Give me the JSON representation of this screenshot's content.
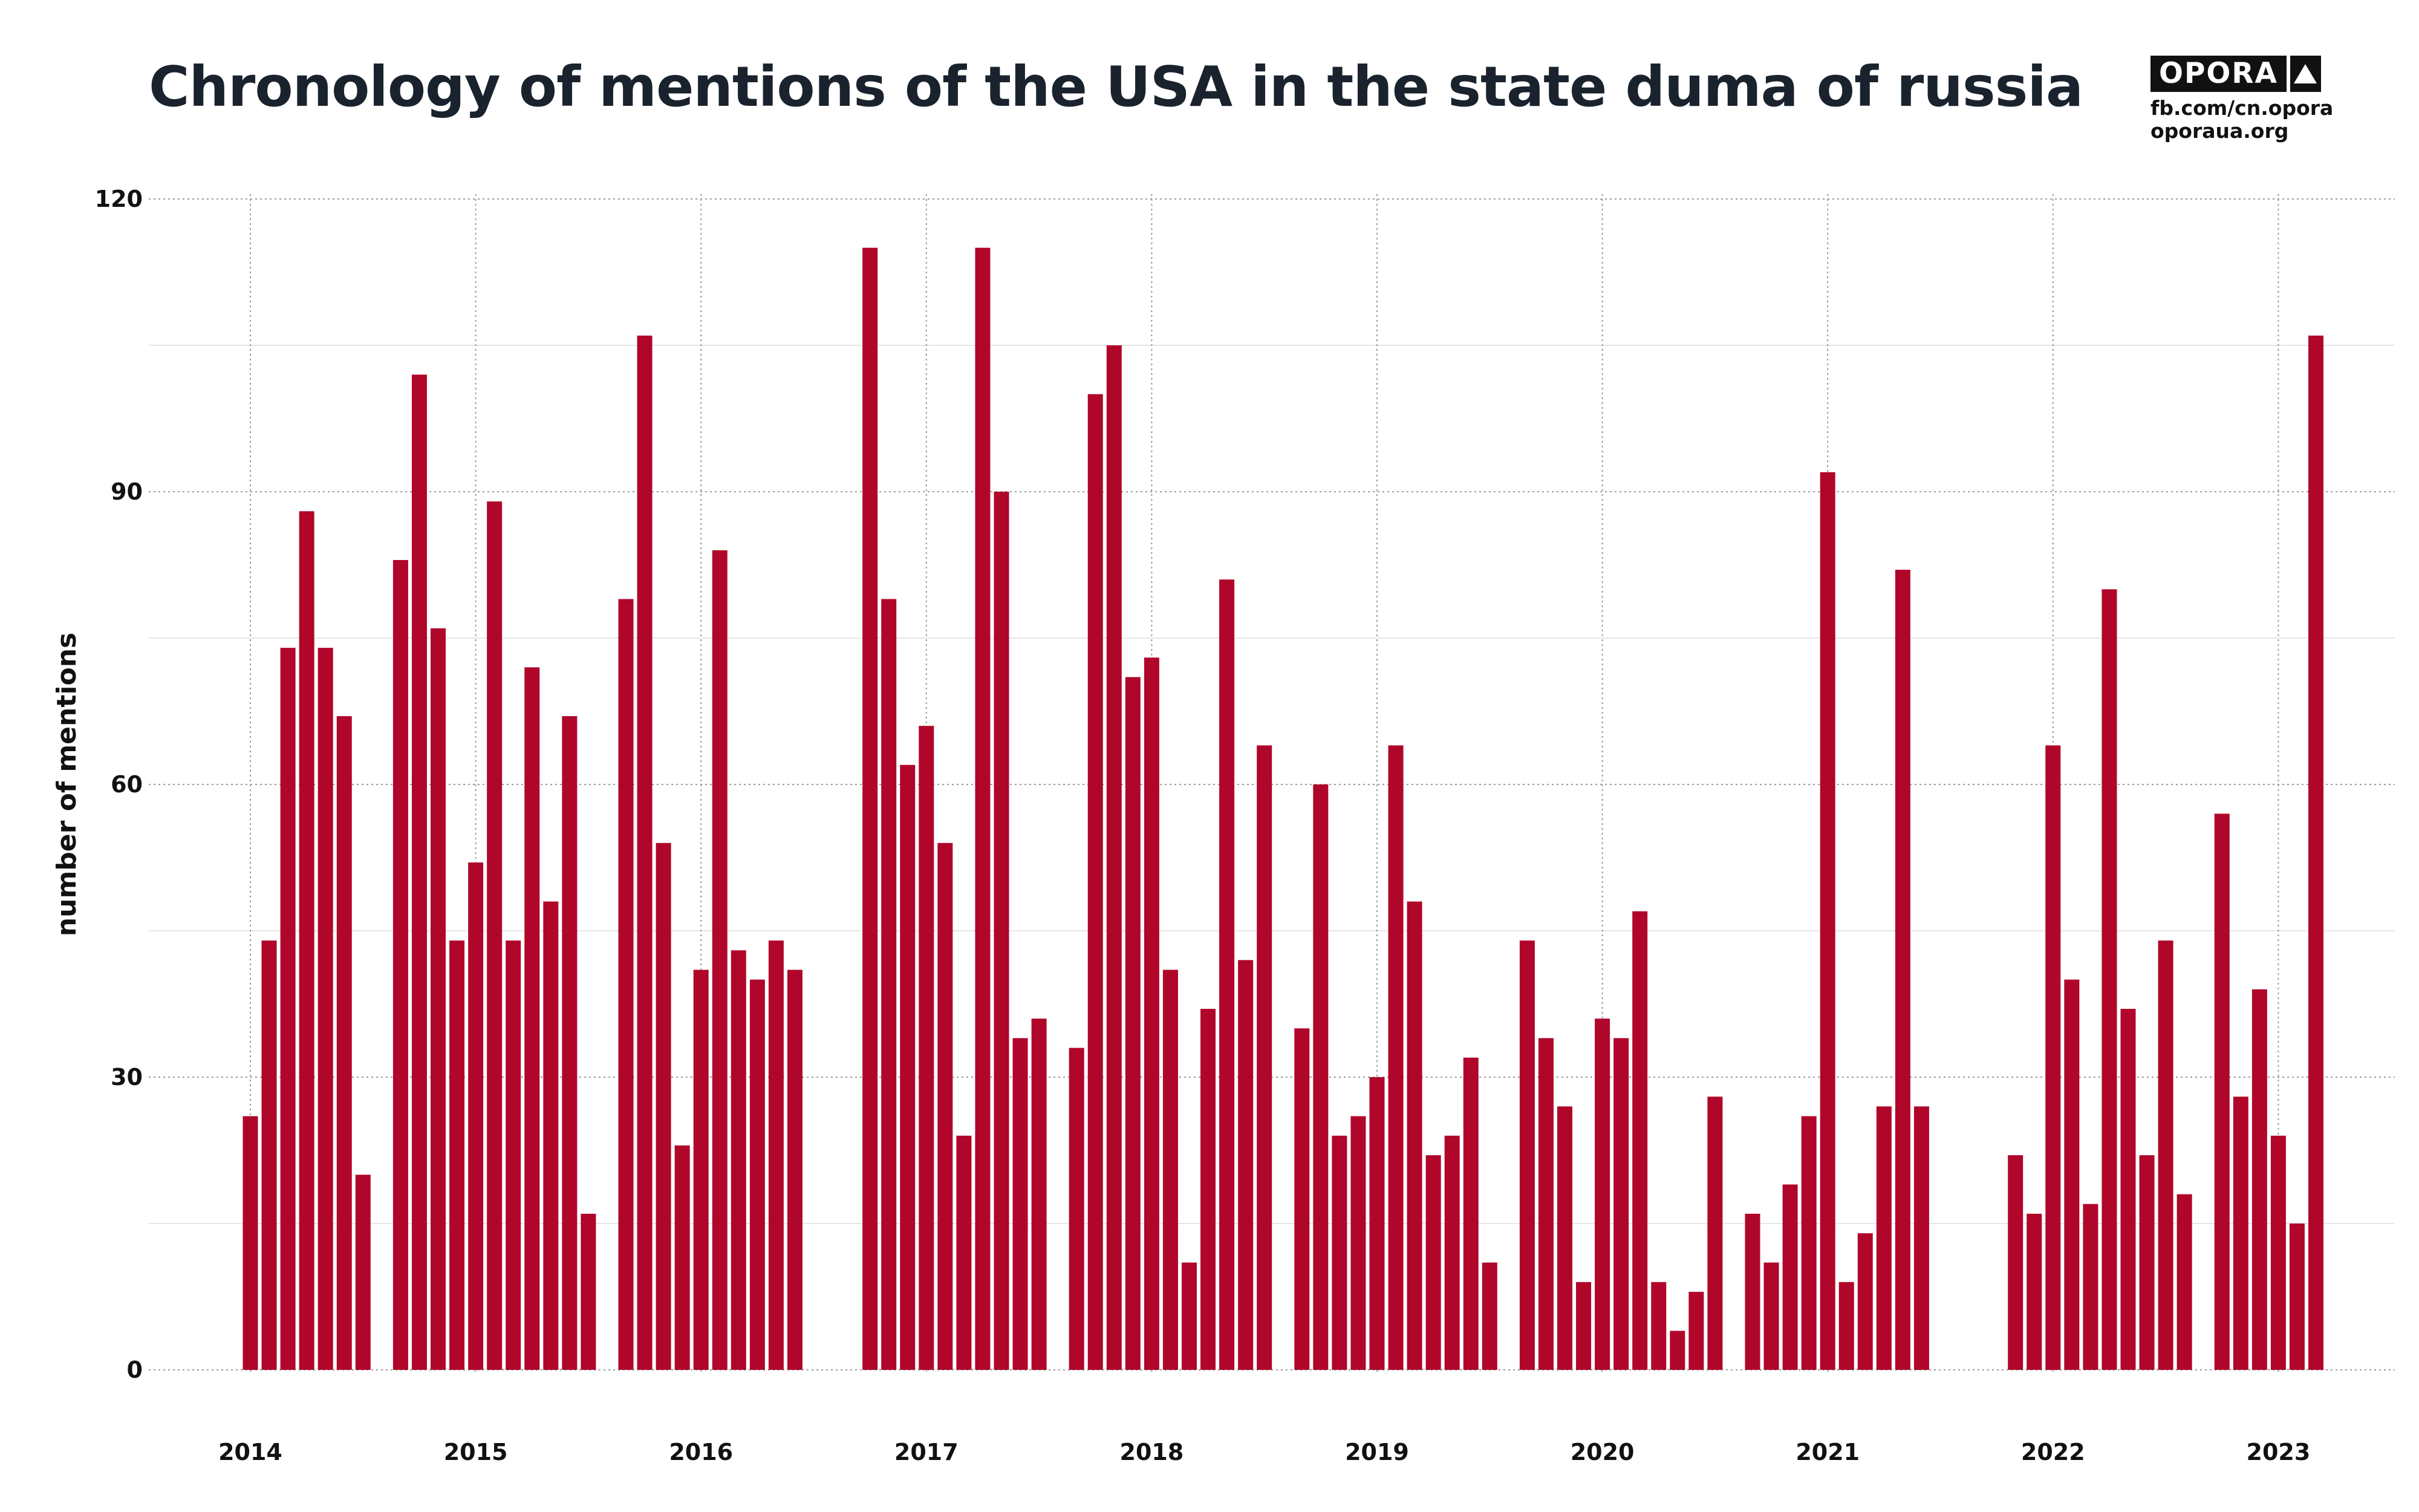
{
  "header": {
    "title": "Chronology of mentions of the USA in the state duma of russia"
  },
  "logo": {
    "name": "OPORA",
    "line1": "fb.com/cn.opora",
    "line2": "oporaua.org"
  },
  "colors": {
    "bar": "#b0062a",
    "text": "#111111",
    "title": "#1a232d",
    "grid_major": "#9a9a9a",
    "grid_minor": "#e6e6e6"
  },
  "chart_data": {
    "type": "bar",
    "title": "Chronology of mentions of the USA in the state duma of russia",
    "xlabel": "",
    "ylabel": "number of mentions",
    "ylim": [
      0,
      120
    ],
    "yticks": [
      0,
      30,
      60,
      90,
      120
    ],
    "x_axis": "date",
    "xticks": [
      "2014",
      "2015",
      "2016",
      "2017",
      "2018",
      "2019",
      "2020",
      "2021",
      "2022",
      "2023"
    ],
    "xlim": [
      "2013-07",
      "2023-06"
    ],
    "grid": true,
    "points": [
      {
        "date": "2014-01",
        "value": 26
      },
      {
        "date": "2014-02",
        "value": 44
      },
      {
        "date": "2014-03",
        "value": 74
      },
      {
        "date": "2014-04",
        "value": 88
      },
      {
        "date": "2014-05",
        "value": 74
      },
      {
        "date": "2014-06",
        "value": 67
      },
      {
        "date": "2014-07",
        "value": 20
      },
      {
        "date": "2014-09",
        "value": 83
      },
      {
        "date": "2014-10",
        "value": 102
      },
      {
        "date": "2014-11",
        "value": 76
      },
      {
        "date": "2014-12",
        "value": 44
      },
      {
        "date": "2015-01",
        "value": 52
      },
      {
        "date": "2015-02",
        "value": 89
      },
      {
        "date": "2015-03",
        "value": 44
      },
      {
        "date": "2015-04",
        "value": 72
      },
      {
        "date": "2015-05",
        "value": 48
      },
      {
        "date": "2015-06",
        "value": 67
      },
      {
        "date": "2015-07",
        "value": 16
      },
      {
        "date": "2015-09",
        "value": 79
      },
      {
        "date": "2015-10",
        "value": 106
      },
      {
        "date": "2015-11",
        "value": 54
      },
      {
        "date": "2015-12",
        "value": 23
      },
      {
        "date": "2016-01",
        "value": 41
      },
      {
        "date": "2016-02",
        "value": 84
      },
      {
        "date": "2016-03",
        "value": 43
      },
      {
        "date": "2016-04",
        "value": 40
      },
      {
        "date": "2016-05",
        "value": 44
      },
      {
        "date": "2016-06",
        "value": 41
      },
      {
        "date": "2016-10",
        "value": 115
      },
      {
        "date": "2016-11",
        "value": 79
      },
      {
        "date": "2016-12",
        "value": 62
      },
      {
        "date": "2017-01",
        "value": 66
      },
      {
        "date": "2017-02",
        "value": 54
      },
      {
        "date": "2017-03",
        "value": 24
      },
      {
        "date": "2017-04",
        "value": 115
      },
      {
        "date": "2017-05",
        "value": 90
      },
      {
        "date": "2017-06",
        "value": 34
      },
      {
        "date": "2017-07",
        "value": 36
      },
      {
        "date": "2017-09",
        "value": 33
      },
      {
        "date": "2017-10",
        "value": 100
      },
      {
        "date": "2017-11",
        "value": 105
      },
      {
        "date": "2017-12",
        "value": 71
      },
      {
        "date": "2018-01",
        "value": 73
      },
      {
        "date": "2018-02",
        "value": 41
      },
      {
        "date": "2018-03",
        "value": 11
      },
      {
        "date": "2018-04",
        "value": 37
      },
      {
        "date": "2018-05",
        "value": 81
      },
      {
        "date": "2018-06",
        "value": 42
      },
      {
        "date": "2018-07",
        "value": 64
      },
      {
        "date": "2018-09",
        "value": 35
      },
      {
        "date": "2018-10",
        "value": 60
      },
      {
        "date": "2018-11",
        "value": 24
      },
      {
        "date": "2018-12",
        "value": 26
      },
      {
        "date": "2019-01",
        "value": 30
      },
      {
        "date": "2019-02",
        "value": 64
      },
      {
        "date": "2019-03",
        "value": 48
      },
      {
        "date": "2019-04",
        "value": 22
      },
      {
        "date": "2019-05",
        "value": 24
      },
      {
        "date": "2019-06",
        "value": 32
      },
      {
        "date": "2019-07",
        "value": 11
      },
      {
        "date": "2019-09",
        "value": 44
      },
      {
        "date": "2019-10",
        "value": 34
      },
      {
        "date": "2019-11",
        "value": 27
      },
      {
        "date": "2019-12",
        "value": 9
      },
      {
        "date": "2020-01",
        "value": 36
      },
      {
        "date": "2020-02",
        "value": 34
      },
      {
        "date": "2020-03",
        "value": 47
      },
      {
        "date": "2020-04",
        "value": 9
      },
      {
        "date": "2020-05",
        "value": 4
      },
      {
        "date": "2020-06",
        "value": 8
      },
      {
        "date": "2020-07",
        "value": 28
      },
      {
        "date": "2020-09",
        "value": 16
      },
      {
        "date": "2020-10",
        "value": 11
      },
      {
        "date": "2020-11",
        "value": 19
      },
      {
        "date": "2020-12",
        "value": 26
      },
      {
        "date": "2021-01",
        "value": 92
      },
      {
        "date": "2021-02",
        "value": 9
      },
      {
        "date": "2021-03",
        "value": 14
      },
      {
        "date": "2021-04",
        "value": 27
      },
      {
        "date": "2021-05",
        "value": 82
      },
      {
        "date": "2021-06",
        "value": 27
      },
      {
        "date": "2021-11",
        "value": 22
      },
      {
        "date": "2021-12",
        "value": 16
      },
      {
        "date": "2022-01",
        "value": 64
      },
      {
        "date": "2022-02",
        "value": 40
      },
      {
        "date": "2022-03",
        "value": 17
      },
      {
        "date": "2022-04",
        "value": 80
      },
      {
        "date": "2022-05",
        "value": 37
      },
      {
        "date": "2022-06",
        "value": 22
      },
      {
        "date": "2022-07",
        "value": 44
      },
      {
        "date": "2022-08",
        "value": 18
      },
      {
        "date": "2022-10",
        "value": 57
      },
      {
        "date": "2022-11",
        "value": 28
      },
      {
        "date": "2022-12",
        "value": 39
      },
      {
        "date": "2023-01",
        "value": 24
      },
      {
        "date": "2023-02",
        "value": 15
      },
      {
        "date": "2023-03",
        "value": 106
      }
    ]
  }
}
